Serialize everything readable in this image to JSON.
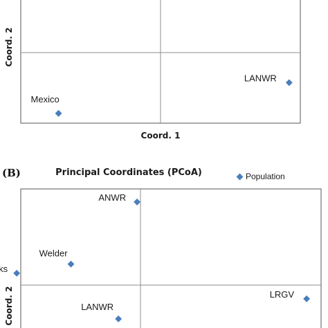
{
  "chart_data": [
    {
      "type": "scatter",
      "panel_label": "",
      "title": "",
      "xlabel": "Coord. 1",
      "ylabel": "Coord. 2",
      "origin_lines": true,
      "xlim": [
        -1,
        1
      ],
      "ylim": [
        -1,
        1
      ],
      "points": [
        {
          "label": "Mexico",
          "x": -0.73,
          "y": -0.87
        },
        {
          "label": "LANWR",
          "x": 0.92,
          "y": -0.43
        }
      ],
      "marker_color": "#4a7ebb"
    },
    {
      "type": "scatter",
      "panel_label": "(B)",
      "title": "Principal Coordinates (PCoA)",
      "xlabel": "",
      "ylabel": "Coord. 2",
      "legend": {
        "label": "Population",
        "position": "top-right"
      },
      "origin_lines": true,
      "xlim": [
        -1,
        1
      ],
      "ylim": [
        -1,
        1
      ],
      "points": [
        {
          "label": "ANWR",
          "x": -0.02,
          "y": 0.91
        },
        {
          "label": "Welder",
          "x": -0.41,
          "y": 0.23
        },
        {
          "label": "Brooks",
          "x": -0.73,
          "y": 0.13
        },
        {
          "label": "LRGV",
          "x": 0.98,
          "y": -0.15
        },
        {
          "label": "LANWR",
          "x": -0.13,
          "y": -0.37
        }
      ],
      "marker_color": "#4a7ebb"
    }
  ]
}
